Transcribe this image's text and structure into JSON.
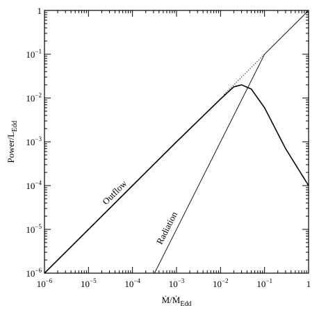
{
  "chart_data": {
    "type": "line",
    "x_label": {
      "main": "Ṁ/Ṁ",
      "sub": "Edd"
    },
    "y_label": {
      "main": "Power/L",
      "sub": "Edd"
    },
    "xscale": "log",
    "yscale": "log",
    "xlim": [
      1e-06,
      1
    ],
    "ylim": [
      1e-06,
      1
    ],
    "xticks": [
      {
        "value": 1e-06,
        "label": "10−6"
      },
      {
        "value": 1e-05,
        "label": "10−5"
      },
      {
        "value": 0.0001,
        "label": "10−4"
      },
      {
        "value": 0.001,
        "label": "10−3"
      },
      {
        "value": 0.01,
        "label": "10−2"
      },
      {
        "value": 0.1,
        "label": "10−1"
      },
      1
    ],
    "yticks": [
      {
        "value": 1e-06,
        "label": "10−6"
      },
      {
        "value": 1e-05,
        "label": "10−5"
      },
      {
        "value": 0.0001,
        "label": "10−4"
      },
      {
        "value": 0.001,
        "label": "10−3"
      },
      {
        "value": 0.01,
        "label": "10−2"
      },
      {
        "value": 0.1,
        "label": "10−1"
      },
      1
    ],
    "series": [
      {
        "name": "Outflow",
        "color": "#000000",
        "style": "thick",
        "x": [
          1e-06,
          1e-05,
          0.0001,
          0.001,
          0.01,
          0.02,
          0.03,
          0.05,
          0.1,
          0.3,
          1
        ],
        "values": [
          1e-06,
          1e-05,
          0.0001,
          0.001,
          0.0095,
          0.018,
          0.02,
          0.016,
          0.006,
          0.0007,
          0.0001
        ]
      },
      {
        "name": "Radiation",
        "color": "#000000",
        "style": "thin",
        "x": [
          0.000316,
          0.1,
          1
        ],
        "values": [
          1e-06,
          0.1,
          1
        ]
      },
      {
        "color": "#000000",
        "style": "dotted",
        "x": [
          0.012,
          0.1
        ],
        "values": [
          0.012,
          0.1
        ]
      }
    ]
  }
}
